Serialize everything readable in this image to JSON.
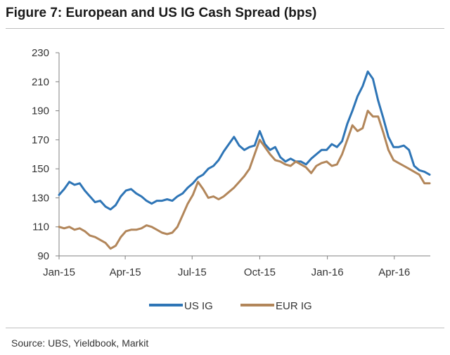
{
  "figure": {
    "title": "Figure 7: European and US IG Cash Spread (bps)",
    "source": "Source:  UBS, Yieldbook, Markit"
  },
  "chart_data": {
    "type": "line",
    "title": "Figure 7: European and US IG Cash Spread (bps)",
    "xlabel": "",
    "ylabel": "",
    "ylim": [
      90,
      230
    ],
    "yticks": [
      90,
      110,
      130,
      150,
      170,
      190,
      210,
      230
    ],
    "xlim": [
      "2015-01-01",
      "2016-05-20"
    ],
    "xticks": [
      {
        "label": "Jan-15",
        "date": "2015-01-01"
      },
      {
        "label": "Apr-15",
        "date": "2015-04-01"
      },
      {
        "label": "Jul-15",
        "date": "2015-07-01"
      },
      {
        "label": "Oct-15",
        "date": "2015-10-01"
      },
      {
        "label": "Jan-16",
        "date": "2016-01-01"
      },
      {
        "label": "Apr-16",
        "date": "2016-04-01"
      }
    ],
    "grid": false,
    "legend_position": "bottom",
    "series": [
      {
        "name": "US IG",
        "color": "#2e75b6",
        "points": [
          [
            "2015-01-01",
            132
          ],
          [
            "2015-01-08",
            136
          ],
          [
            "2015-01-15",
            141
          ],
          [
            "2015-01-22",
            139
          ],
          [
            "2015-01-29",
            140
          ],
          [
            "2015-02-05",
            135
          ],
          [
            "2015-02-12",
            131
          ],
          [
            "2015-02-19",
            127
          ],
          [
            "2015-02-26",
            128
          ],
          [
            "2015-03-05",
            124
          ],
          [
            "2015-03-12",
            122
          ],
          [
            "2015-03-19",
            125
          ],
          [
            "2015-03-26",
            131
          ],
          [
            "2015-04-02",
            135
          ],
          [
            "2015-04-09",
            136
          ],
          [
            "2015-04-16",
            133
          ],
          [
            "2015-04-23",
            131
          ],
          [
            "2015-04-30",
            128
          ],
          [
            "2015-05-07",
            126
          ],
          [
            "2015-05-14",
            128
          ],
          [
            "2015-05-21",
            128
          ],
          [
            "2015-05-28",
            129
          ],
          [
            "2015-06-04",
            128
          ],
          [
            "2015-06-11",
            131
          ],
          [
            "2015-06-18",
            133
          ],
          [
            "2015-06-25",
            137
          ],
          [
            "2015-07-02",
            140
          ],
          [
            "2015-07-09",
            144
          ],
          [
            "2015-07-16",
            146
          ],
          [
            "2015-07-23",
            150
          ],
          [
            "2015-07-30",
            152
          ],
          [
            "2015-08-06",
            156
          ],
          [
            "2015-08-13",
            162
          ],
          [
            "2015-08-20",
            167
          ],
          [
            "2015-08-27",
            172
          ],
          [
            "2015-09-03",
            166
          ],
          [
            "2015-09-10",
            163
          ],
          [
            "2015-09-17",
            165
          ],
          [
            "2015-09-24",
            166
          ],
          [
            "2015-10-01",
            176
          ],
          [
            "2015-10-08",
            167
          ],
          [
            "2015-10-15",
            163
          ],
          [
            "2015-10-22",
            165
          ],
          [
            "2015-10-29",
            158
          ],
          [
            "2015-11-05",
            155
          ],
          [
            "2015-11-12",
            157
          ],
          [
            "2015-11-19",
            155
          ],
          [
            "2015-11-26",
            155
          ],
          [
            "2015-12-03",
            153
          ],
          [
            "2015-12-10",
            157
          ],
          [
            "2015-12-17",
            160
          ],
          [
            "2015-12-24",
            163
          ],
          [
            "2015-12-31",
            163
          ],
          [
            "2016-01-07",
            167
          ],
          [
            "2016-01-14",
            165
          ],
          [
            "2016-01-21",
            169
          ],
          [
            "2016-01-28",
            181
          ],
          [
            "2016-02-04",
            190
          ],
          [
            "2016-02-11",
            200
          ],
          [
            "2016-02-18",
            207
          ],
          [
            "2016-02-25",
            217
          ],
          [
            "2016-03-03",
            212
          ],
          [
            "2016-03-10",
            197
          ],
          [
            "2016-03-17",
            185
          ],
          [
            "2016-03-24",
            172
          ],
          [
            "2016-03-31",
            165
          ],
          [
            "2016-04-07",
            165
          ],
          [
            "2016-04-14",
            166
          ],
          [
            "2016-04-21",
            163
          ],
          [
            "2016-04-28",
            152
          ],
          [
            "2016-05-05",
            149
          ],
          [
            "2016-05-12",
            148
          ],
          [
            "2016-05-19",
            146
          ]
        ]
      },
      {
        "name": "EUR IG",
        "color": "#b2865a",
        "points": [
          [
            "2015-01-01",
            110
          ],
          [
            "2015-01-08",
            109
          ],
          [
            "2015-01-15",
            110
          ],
          [
            "2015-01-22",
            108
          ],
          [
            "2015-01-29",
            109
          ],
          [
            "2015-02-05",
            107
          ],
          [
            "2015-02-12",
            104
          ],
          [
            "2015-02-19",
            103
          ],
          [
            "2015-02-26",
            101
          ],
          [
            "2015-03-05",
            99
          ],
          [
            "2015-03-12",
            95
          ],
          [
            "2015-03-19",
            97
          ],
          [
            "2015-03-26",
            103
          ],
          [
            "2015-04-02",
            107
          ],
          [
            "2015-04-09",
            108
          ],
          [
            "2015-04-16",
            108
          ],
          [
            "2015-04-23",
            109
          ],
          [
            "2015-04-30",
            111
          ],
          [
            "2015-05-07",
            110
          ],
          [
            "2015-05-14",
            108
          ],
          [
            "2015-05-21",
            106
          ],
          [
            "2015-05-28",
            105
          ],
          [
            "2015-06-04",
            106
          ],
          [
            "2015-06-11",
            110
          ],
          [
            "2015-06-18",
            118
          ],
          [
            "2015-06-25",
            126
          ],
          [
            "2015-07-02",
            132
          ],
          [
            "2015-07-09",
            141
          ],
          [
            "2015-07-16",
            136
          ],
          [
            "2015-07-23",
            130
          ],
          [
            "2015-07-30",
            131
          ],
          [
            "2015-08-06",
            129
          ],
          [
            "2015-08-13",
            131
          ],
          [
            "2015-08-20",
            134
          ],
          [
            "2015-08-27",
            137
          ],
          [
            "2015-09-03",
            141
          ],
          [
            "2015-09-10",
            145
          ],
          [
            "2015-09-17",
            150
          ],
          [
            "2015-09-24",
            160
          ],
          [
            "2015-10-01",
            170
          ],
          [
            "2015-10-08",
            165
          ],
          [
            "2015-10-15",
            160
          ],
          [
            "2015-10-22",
            156
          ],
          [
            "2015-10-29",
            155
          ],
          [
            "2015-11-05",
            153
          ],
          [
            "2015-11-12",
            152
          ],
          [
            "2015-11-19",
            155
          ],
          [
            "2015-11-26",
            153
          ],
          [
            "2015-12-03",
            151
          ],
          [
            "2015-12-10",
            147
          ],
          [
            "2015-12-17",
            152
          ],
          [
            "2015-12-24",
            154
          ],
          [
            "2015-12-31",
            155
          ],
          [
            "2016-01-07",
            152
          ],
          [
            "2016-01-14",
            153
          ],
          [
            "2016-01-21",
            160
          ],
          [
            "2016-01-28",
            170
          ],
          [
            "2016-02-04",
            180
          ],
          [
            "2016-02-11",
            176
          ],
          [
            "2016-02-18",
            178
          ],
          [
            "2016-02-25",
            190
          ],
          [
            "2016-03-03",
            186
          ],
          [
            "2016-03-10",
            186
          ],
          [
            "2016-03-17",
            175
          ],
          [
            "2016-03-24",
            163
          ],
          [
            "2016-03-31",
            156
          ],
          [
            "2016-04-07",
            154
          ],
          [
            "2016-04-14",
            152
          ],
          [
            "2016-04-21",
            150
          ],
          [
            "2016-04-28",
            148
          ],
          [
            "2016-05-05",
            146
          ],
          [
            "2016-05-12",
            140
          ],
          [
            "2016-05-19",
            140
          ]
        ]
      }
    ]
  }
}
